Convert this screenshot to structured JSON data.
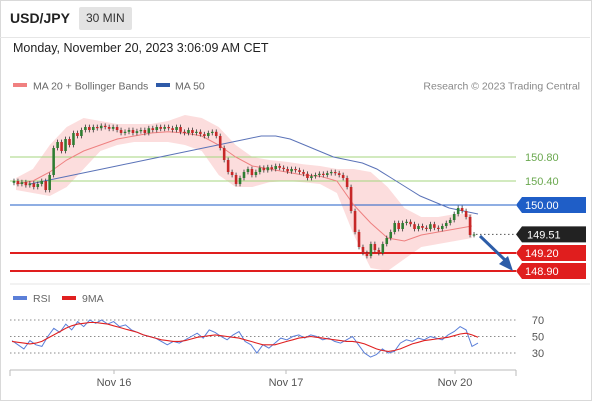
{
  "header": {
    "symbol": "USD/JPY",
    "timeframe": "30 MIN",
    "datetime": "Monday, November 20, 2023 3:06:09 AM CET"
  },
  "legend": [
    {
      "label": "MA 20 + Bollinger Bands",
      "color": "#f08080"
    },
    {
      "label": "MA 50",
      "color": "#2e5aa8"
    }
  ],
  "copyright": "Research © 2023 Trading Central",
  "colors": {
    "up": "#2f7d32",
    "down": "#c62828",
    "bollinger_fill": "#fbd7d7",
    "ma20": "#ee8080",
    "ma50": "#5b73b8",
    "resistance_green": "#a5d67f",
    "pivot": "#1f5ec7",
    "support": "#e01e1e",
    "last": "#222222",
    "rsi": "#5b7fd8",
    "rsi_ma": "#e02020",
    "arrow": "#2d5da8"
  },
  "chart_data": [
    {
      "type": "candlestick",
      "title": "USD/JPY 30 MIN",
      "y_unit": "price",
      "ylim": [
        148.8,
        151.3
      ],
      "x_ticks": [
        "Nov 16",
        "Nov 17",
        "Nov 20"
      ],
      "levels": [
        {
          "value": 150.8,
          "label": "150.80",
          "kind": "resistance"
        },
        {
          "value": 150.4,
          "label": "150.40",
          "kind": "resistance"
        },
        {
          "value": 150.0,
          "label": "150.00",
          "kind": "pivot"
        },
        {
          "value": 149.51,
          "label": "149.51",
          "kind": "last"
        },
        {
          "value": 149.2,
          "label": "149.20",
          "kind": "support"
        },
        {
          "value": 148.9,
          "label": "148.90",
          "kind": "support"
        }
      ],
      "close": [
        150.4,
        150.35,
        150.38,
        150.33,
        150.36,
        150.3,
        150.35,
        150.4,
        150.25,
        150.5,
        150.95,
        151.05,
        150.9,
        151.1,
        151.0,
        151.2,
        151.15,
        151.25,
        151.3,
        151.25,
        151.3,
        151.28,
        151.32,
        151.3,
        151.27,
        151.3,
        151.25,
        151.2,
        151.22,
        151.25,
        151.2,
        151.23,
        151.25,
        151.2,
        151.28,
        151.25,
        151.3,
        151.27,
        151.3,
        151.28,
        151.25,
        151.3,
        151.22,
        151.2,
        151.25,
        151.2,
        151.22,
        151.18,
        151.15,
        151.2,
        151.22,
        151.15,
        150.95,
        150.75,
        150.55,
        150.5,
        150.35,
        150.45,
        150.55,
        150.6,
        150.5,
        150.55,
        150.62,
        150.58,
        150.63,
        150.6,
        150.65,
        150.62,
        150.6,
        150.56,
        150.6,
        150.58,
        150.55,
        150.52,
        150.45,
        150.48,
        150.5,
        150.52,
        150.5,
        150.53,
        150.55,
        150.53,
        150.5,
        150.45,
        150.3,
        149.9,
        149.55,
        149.3,
        149.2,
        149.15,
        149.35,
        149.25,
        149.2,
        149.35,
        149.45,
        149.55,
        149.7,
        149.6,
        149.7,
        149.72,
        149.68,
        149.6,
        149.65,
        149.62,
        149.6,
        149.68,
        149.62,
        149.6,
        149.65,
        149.7,
        149.75,
        149.85,
        149.95,
        149.9,
        149.8,
        149.5,
        149.51
      ],
      "ma50_approx": [
        150.35,
        150.4,
        150.45,
        150.5,
        150.55,
        150.6,
        150.65,
        150.7,
        150.75,
        150.8,
        150.85,
        150.9,
        150.95,
        151.0,
        151.05,
        151.1,
        151.15,
        151.15,
        151.1,
        151.0,
        150.9,
        150.8,
        150.75,
        150.7,
        150.6,
        150.45,
        150.3,
        150.15,
        150.05,
        149.95,
        149.9,
        149.85
      ],
      "bollinger": {
        "ma20": [
          150.35,
          150.4,
          150.55,
          150.75,
          150.9,
          151.0,
          151.1,
          151.15,
          151.2,
          151.22,
          151.2,
          151.15,
          151.0,
          150.8,
          150.65,
          150.6,
          150.55,
          150.5,
          150.48,
          150.4,
          150.0,
          149.7,
          149.45,
          149.4,
          149.5,
          149.55,
          149.6,
          149.65
        ],
        "upper": [
          150.45,
          150.6,
          151.0,
          151.3,
          151.45,
          151.4,
          151.35,
          151.35,
          151.35,
          151.4,
          151.5,
          151.45,
          151.3,
          151.0,
          150.8,
          150.75,
          150.72,
          150.68,
          150.65,
          150.6,
          150.6,
          150.55,
          150.3,
          149.95,
          149.8,
          149.8,
          149.85,
          149.85
        ],
        "lower": [
          150.25,
          150.2,
          150.15,
          150.3,
          150.6,
          150.9,
          151.0,
          151.05,
          151.05,
          151.05,
          151.0,
          150.9,
          150.5,
          150.3,
          150.3,
          150.38,
          150.4,
          150.38,
          150.35,
          150.2,
          149.5,
          148.95,
          148.9,
          149.1,
          149.3,
          149.35,
          149.4,
          149.45
        ]
      }
    },
    {
      "type": "line",
      "title": "RSI",
      "legend": [
        "RSI",
        "9MA"
      ],
      "ylim": [
        20,
        80
      ],
      "y_ticks": [
        70,
        50,
        30
      ],
      "rsi": [
        45,
        40,
        35,
        45,
        40,
        38,
        50,
        60,
        55,
        65,
        58,
        68,
        62,
        70,
        66,
        70,
        65,
        68,
        62,
        64,
        58,
        55,
        52,
        50,
        48,
        44,
        40,
        44,
        42,
        46,
        50,
        54,
        48,
        58,
        55,
        50,
        46,
        52,
        56,
        44,
        40,
        30,
        40,
        36,
        42,
        48,
        46,
        50,
        52,
        48,
        52,
        50,
        46,
        48,
        44,
        42,
        46,
        50,
        40,
        30,
        25,
        28,
        35,
        30,
        32,
        42,
        46,
        44,
        48,
        46,
        50,
        48,
        46,
        52,
        56,
        62,
        58,
        38,
        42
      ],
      "ma9": [
        44,
        43,
        42,
        41,
        42,
        44,
        48,
        52,
        56,
        60,
        63,
        65,
        66,
        67,
        67,
        66,
        65,
        63,
        61,
        59,
        57,
        55,
        52,
        50,
        48,
        46,
        45,
        44,
        44,
        45,
        47,
        49,
        50,
        51,
        52,
        51,
        50,
        49,
        48,
        46,
        44,
        42,
        40,
        40,
        40,
        42,
        44,
        46,
        48,
        49,
        50,
        49,
        48,
        47,
        46,
        45,
        44,
        44,
        43,
        41,
        38,
        35,
        33,
        32,
        33,
        35,
        38,
        41,
        43,
        45,
        46,
        47,
        48,
        49,
        51,
        53,
        54,
        52,
        49
      ]
    }
  ]
}
